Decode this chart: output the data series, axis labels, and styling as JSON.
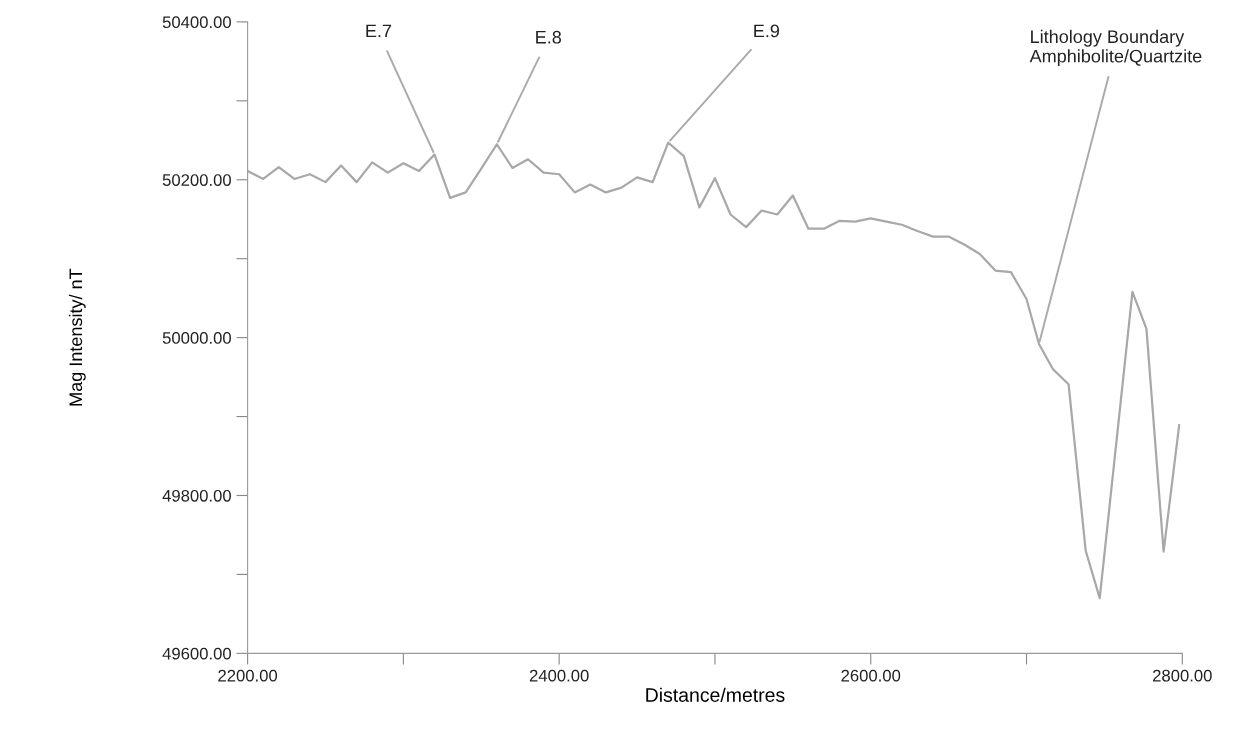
{
  "chart_data": {
    "type": "line",
    "xlabel": "Distance/metres",
    "ylabel": "Mag Intensity/ nT",
    "x": [
      2200,
      2210,
      2220,
      2230,
      2240,
      2250,
      2260,
      2270,
      2280,
      2290,
      2300,
      2310,
      2320,
      2330,
      2340,
      2350,
      2360,
      2370,
      2380,
      2390,
      2400,
      2410,
      2420,
      2430,
      2440,
      2450,
      2460,
      2470,
      2480,
      2490,
      2500,
      2510,
      2520,
      2530,
      2540,
      2550,
      2560,
      2570,
      2580,
      2590,
      2600,
      2610,
      2620,
      2630,
      2640,
      2650,
      2660,
      2670,
      2680,
      2690,
      2700,
      2708,
      2717,
      2727,
      2738,
      2747,
      2768,
      2777,
      2788,
      2798
    ],
    "series": [
      {
        "color": "#a8a8a8",
        "values": [
          50211,
          50201,
          50216,
          50201,
          50207,
          50197,
          50218,
          50197,
          50222,
          50209,
          50221,
          50211,
          50232,
          50177,
          50184,
          50214,
          50245,
          50215,
          50226,
          50209,
          50207,
          50184,
          50194,
          50184,
          50190,
          50203,
          50197,
          50247,
          50230,
          50165,
          50202,
          50156,
          50140,
          50161,
          50156,
          50180,
          50138,
          50138,
          50148,
          50147,
          50151,
          50147,
          50143,
          50135,
          50128,
          50128,
          50118,
          50106,
          50085,
          50083,
          50049,
          49992,
          49960,
          49941,
          49730,
          49670,
          50058,
          50011,
          49729,
          49889
        ]
      }
    ],
    "xlim": [
      2200,
      2800
    ],
    "xticks": [
      {
        "value": 2200,
        "label": "2200.00"
      },
      {
        "value": 2300,
        "label": null
      },
      {
        "value": 2400,
        "label": "2400.00"
      },
      {
        "value": 2500,
        "label": null
      },
      {
        "value": 2600,
        "label": "2600.00"
      },
      {
        "value": 2700,
        "label": null
      },
      {
        "value": 2800,
        "label": "2800.00"
      }
    ],
    "ylim": [
      49600,
      50400
    ],
    "yticks": [
      {
        "value": 49600,
        "label": "49600.00"
      },
      {
        "value": 49700,
        "label": null
      },
      {
        "value": 49800,
        "label": "49800.00"
      },
      {
        "value": 49900,
        "label": null
      },
      {
        "value": 50000,
        "label": "50000.00"
      },
      {
        "value": 50100,
        "label": null
      },
      {
        "value": 50200,
        "label": "50200.00"
      },
      {
        "value": 50300,
        "label": null
      },
      {
        "value": 50400,
        "label": "50400.00"
      }
    ],
    "annotations": [
      {
        "text": "E.7",
        "x": 2320,
        "y": 50232
      },
      {
        "text": "E.8",
        "x": 2360,
        "y": 50245
      },
      {
        "text": "E.9",
        "x": 2470,
        "y": 50247
      },
      {
        "text": "Lithology Boundary\nAmphibolite/Quartzite",
        "x": 2708,
        "y": 49992
      }
    ],
    "grid": false,
    "legend": false,
    "marker": "none",
    "line_style": "solid"
  }
}
